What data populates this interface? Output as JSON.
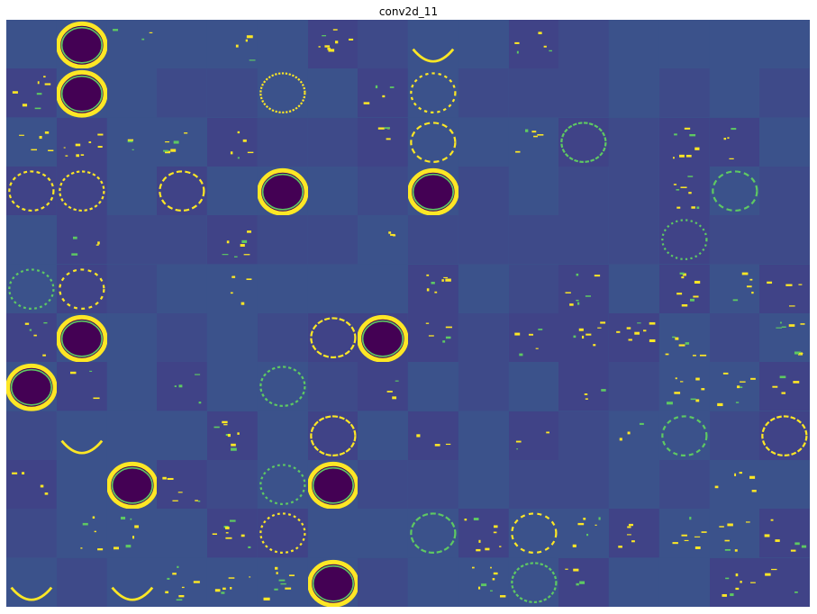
{
  "figure": {
    "title": "conv2d_11"
  },
  "feature_maps": {
    "layer": "conv2d_11",
    "rows": 12,
    "cols": 16,
    "colormap": [
      "#440154",
      "#3b528b",
      "#21918c",
      "#5ec962",
      "#fde725"
    ],
    "tiles": [
      "c",
      "D",
      "s",
      "c",
      "s",
      "c",
      "s",
      "c",
      "e",
      "c",
      "s",
      "c",
      "c",
      "c",
      "c",
      "c",
      "s",
      "D",
      "c",
      "c",
      "c",
      "r",
      "c",
      "s",
      "r",
      "c",
      "c",
      "c",
      "c",
      "c",
      "c",
      "c",
      "s",
      "s",
      "s",
      "s",
      "s",
      "c",
      "c",
      "s",
      "r",
      "c",
      "s",
      "r",
      "c",
      "s",
      "s",
      "c",
      "r",
      "r",
      "c",
      "r",
      "c",
      "D",
      "c",
      "c",
      "D",
      "c",
      "c",
      "c",
      "c",
      "s",
      "r",
      "c",
      "c",
      "s",
      "c",
      "c",
      "s",
      "c",
      "c",
      "s",
      "c",
      "c",
      "c",
      "c",
      "c",
      "r",
      "c",
      "c",
      "r",
      "r",
      "c",
      "c",
      "s",
      "c",
      "c",
      "c",
      "s",
      "c",
      "c",
      "s",
      "c",
      "s",
      "s",
      "s",
      "s",
      "D",
      "c",
      "c",
      "c",
      "c",
      "r",
      "D",
      "s",
      "c",
      "s",
      "s",
      "s",
      "s",
      "c",
      "s",
      "D",
      "s",
      "c",
      "s",
      "c",
      "r",
      "c",
      "s",
      "c",
      "c",
      "c",
      "s",
      "c",
      "s",
      "s",
      "s",
      "c",
      "e",
      "c",
      "c",
      "s",
      "c",
      "r",
      "c",
      "s",
      "c",
      "s",
      "c",
      "s",
      "r",
      "c",
      "r",
      "s",
      "c",
      "D",
      "s",
      "c",
      "r",
      "D",
      "c",
      "c",
      "c",
      "c",
      "c",
      "c",
      "c",
      "s",
      "c",
      "c",
      "s",
      "s",
      "c",
      "s",
      "r",
      "c",
      "c",
      "r",
      "s",
      "r",
      "s",
      "s",
      "s",
      "s",
      "s",
      "e",
      "c",
      "e",
      "s",
      "s",
      "s",
      "D",
      "c",
      "c",
      "s",
      "r",
      "s",
      "c",
      "c",
      "s",
      "s"
    ]
  }
}
